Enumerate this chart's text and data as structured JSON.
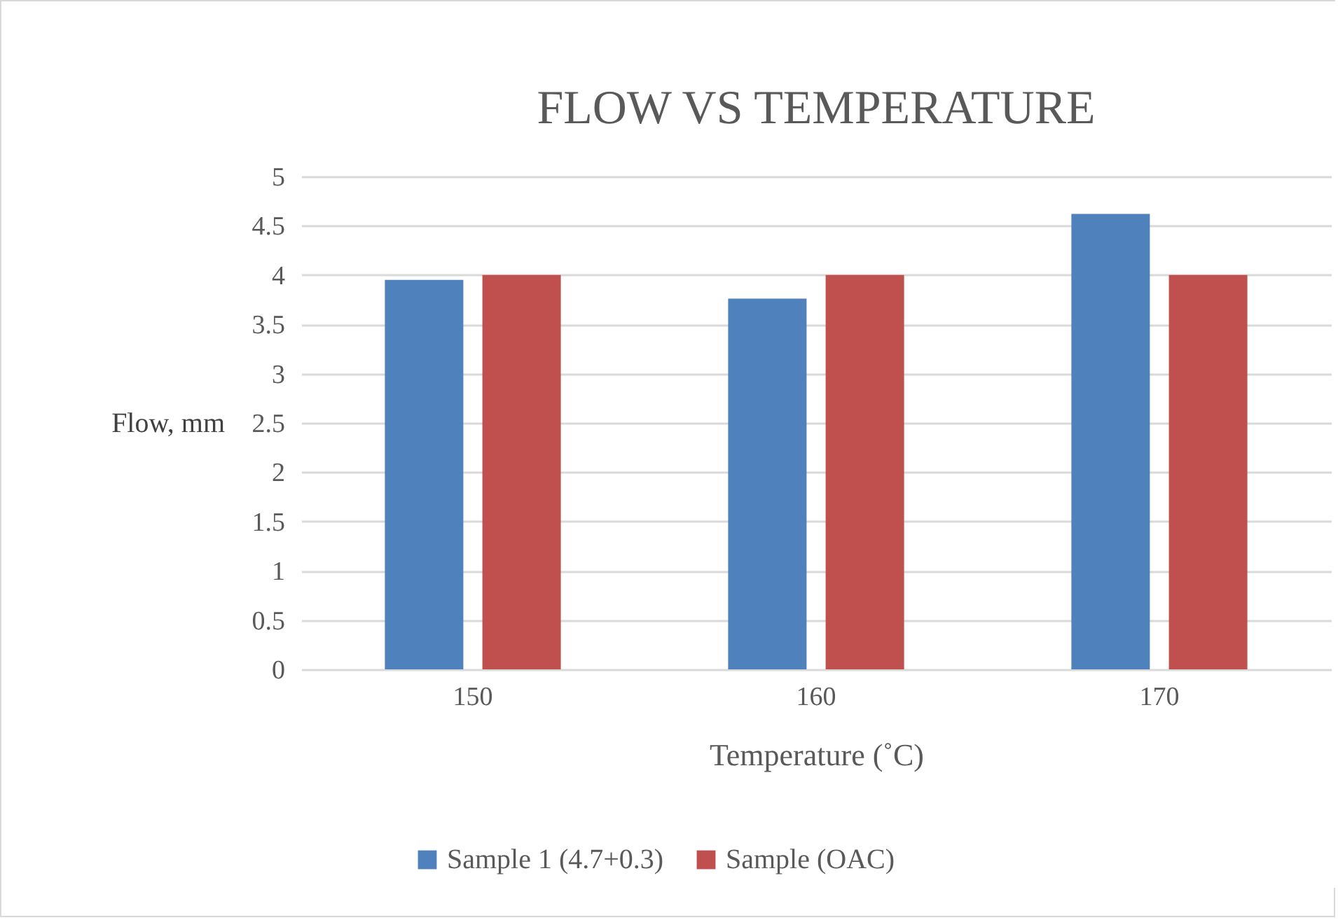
{
  "chart_data": {
    "type": "bar",
    "title": "FLOW VS TEMPERATURE",
    "xlabel": "Temperature (˚C)",
    "ylabel": "Flow, mm",
    "categories": [
      "150",
      "160",
      "170"
    ],
    "series": [
      {
        "name": "Sample 1 (4.7+0.3)",
        "color": "#4f81bd",
        "values": [
          3.95,
          3.76,
          4.62
        ]
      },
      {
        "name": "Sample (OAC)",
        "color": "#c0504d",
        "values": [
          4,
          4,
          4
        ]
      }
    ],
    "ylim": [
      0,
      5
    ],
    "yticks": [
      0,
      0.5,
      1,
      1.5,
      2,
      2.5,
      3,
      3.5,
      4,
      4.5,
      5
    ],
    "grid": "y",
    "legend": "bottom"
  }
}
